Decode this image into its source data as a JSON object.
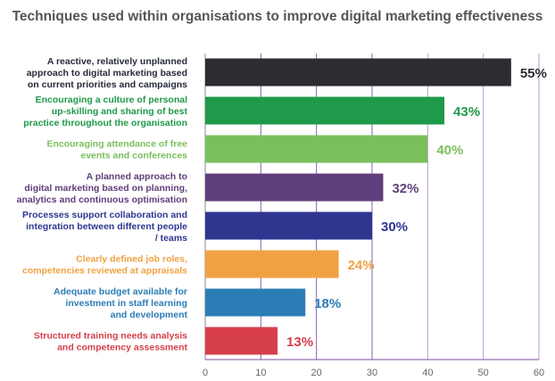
{
  "chart_data": {
    "type": "bar",
    "orientation": "horizontal",
    "title": "Techniques used within organisations to improve digital marketing effectiveness",
    "xlabel": "",
    "ylabel": "",
    "xlim": [
      0,
      60
    ],
    "xticks": [
      "0",
      "10",
      "20",
      "30",
      "40",
      "50",
      "60"
    ],
    "grid": true,
    "categories": [
      [
        "A reactive, relatively unplanned",
        "approach to digital marketing based",
        "on current priorities and campaigns"
      ],
      [
        "Encouraging a culture of personal",
        "up-skilling and sharing of best",
        "practice throughout the organisation"
      ],
      [
        "Encouraging attendance of free",
        "events and conferences"
      ],
      [
        "A planned approach to",
        "digital marketing based on planning,",
        "analytics and continuous optimisation"
      ],
      [
        "Processes support collaboration and",
        "integration between different people",
        "/ teams"
      ],
      [
        "Clearly defined job roles,",
        "competencies reviewed at appraisals"
      ],
      [
        "Adequate budget available for",
        "investment in staff learning",
        "and development"
      ],
      [
        "Structured training needs analysis",
        "and competency assessment"
      ]
    ],
    "values": [
      55,
      43,
      40,
      32,
      30,
      24,
      18,
      13
    ],
    "value_labels": [
      "55%",
      "43%",
      "40%",
      "32%",
      "30%",
      "24%",
      "18%",
      "13%"
    ],
    "colors": [
      "#2b2d30",
      "#1f9a4a",
      "#7bbf5c",
      "#5f3f7b",
      "#2e3690",
      "#f0a243",
      "#2b7db5",
      "#d63f4a"
    ],
    "label_colors": [
      "#262a3c",
      "#1f9a4a",
      "#7bbf5c",
      "#5f3f7b",
      "#2e3690",
      "#f0a243",
      "#2b7db5",
      "#d63f4a"
    ],
    "grid_color": "#7b4fa8"
  }
}
